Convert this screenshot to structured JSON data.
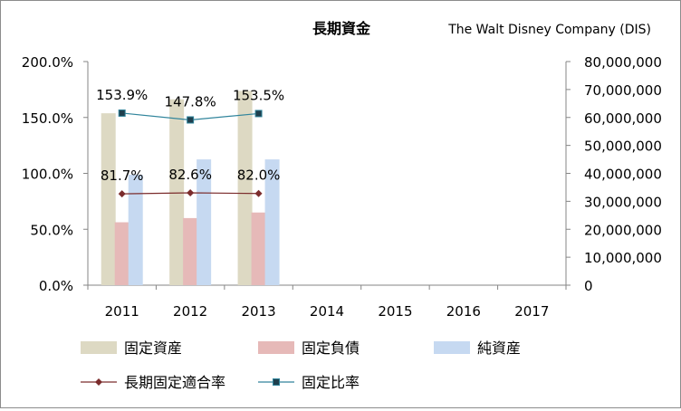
{
  "chart_data": {
    "type": "bar",
    "title": "長期資金",
    "subtitle": "The Walt Disney Company (DIS)",
    "categories": [
      "2011",
      "2012",
      "2013",
      "2014",
      "2015",
      "2016",
      "2017"
    ],
    "left_axis": {
      "ylim": [
        0,
        200
      ],
      "ticks": [
        0,
        50,
        100,
        150,
        200
      ],
      "tick_labels": [
        "0.0%",
        "50.0%",
        "100.0%",
        "150.0%",
        "200.0%"
      ]
    },
    "right_axis": {
      "ylim": [
        0,
        80000000
      ],
      "ticks": [
        0,
        10000000,
        20000000,
        30000000,
        40000000,
        50000000,
        60000000,
        70000000,
        80000000
      ],
      "tick_labels": [
        "0",
        "10,000,000",
        "20,000,000",
        "30,000,000",
        "40,000,000",
        "50,000,000",
        "60,000,000",
        "70,000,000",
        "80,000,000"
      ]
    },
    "bar_series": [
      {
        "name": "固定資産",
        "color": "#ddd9c3",
        "values": [
          61500000,
          66500000,
          69500000,
          null,
          null,
          null,
          null
        ]
      },
      {
        "name": "固定負債",
        "color": "#e6b9b8",
        "values": [
          22500000,
          24000000,
          26000000,
          null,
          null,
          null,
          null
        ]
      },
      {
        "name": "純資産",
        "color": "#c6d9f1",
        "values": [
          39500000,
          45000000,
          45000000,
          null,
          null,
          null,
          null
        ]
      }
    ],
    "line_series": [
      {
        "name": "長期固定適合率",
        "color": "#7b2c2c",
        "marker": "diamond",
        "values": [
          81.7,
          82.6,
          82.0,
          null,
          null,
          null,
          null
        ],
        "labels": [
          "81.7%",
          "82.6%",
          "82.0%"
        ]
      },
      {
        "name": "固定比率",
        "color": "#31859c",
        "marker": "square",
        "values": [
          153.9,
          147.8,
          153.5,
          null,
          null,
          null,
          null
        ],
        "labels": [
          "153.9%",
          "147.8%",
          "153.5%"
        ]
      }
    ],
    "legend": {
      "position": "bottom"
    },
    "grid": false
  }
}
